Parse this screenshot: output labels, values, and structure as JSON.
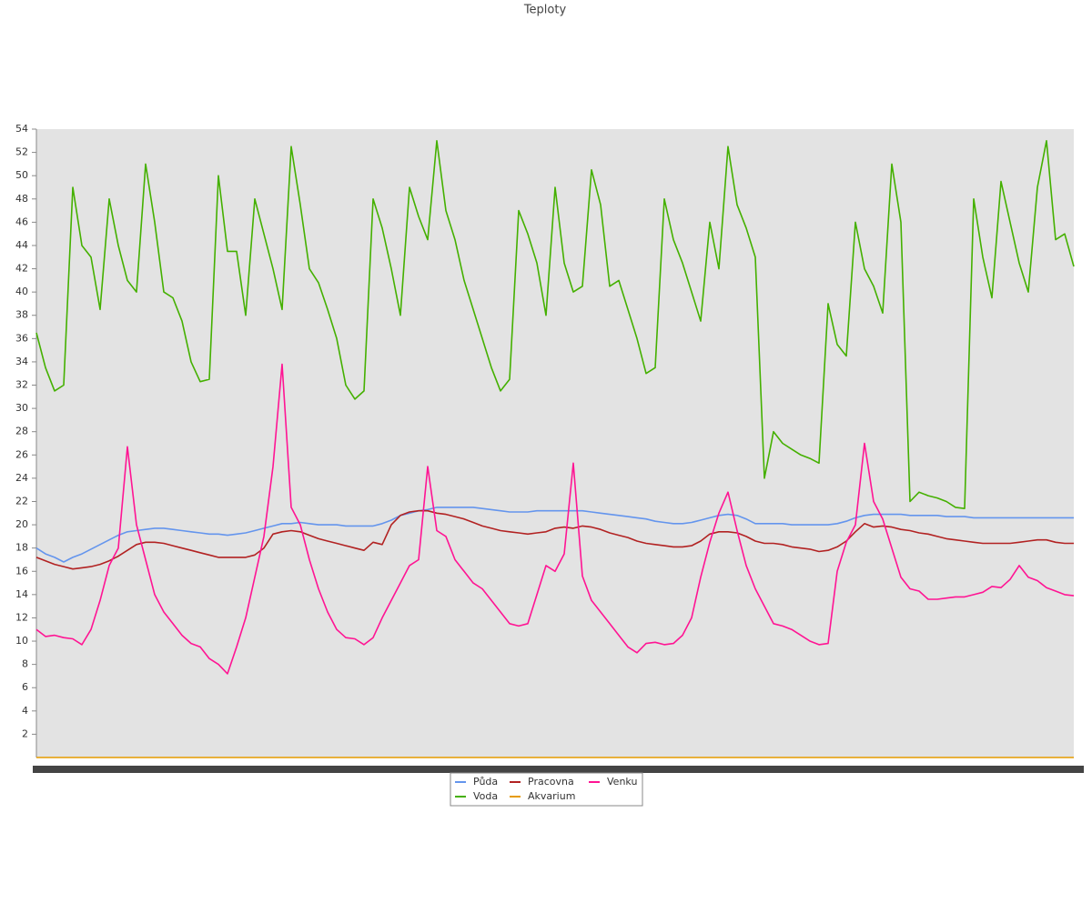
{
  "chart_data": {
    "type": "line",
    "title": "Teploty",
    "categories": [
      null,
      null,
      null,
      null,
      null,
      null,
      null,
      null,
      null,
      null,
      null,
      null,
      null,
      null,
      null,
      null,
      null,
      null,
      null,
      null,
      null,
      null,
      null,
      null,
      null,
      null,
      null,
      null,
      null,
      null,
      null,
      null,
      null,
      null,
      null,
      null,
      null,
      null,
      null,
      null,
      null,
      null,
      null,
      null,
      null,
      null,
      null,
      null,
      null,
      null,
      null,
      null,
      null,
      null,
      null,
      null,
      null,
      null,
      null,
      null,
      null,
      null,
      null,
      null,
      null,
      null,
      null,
      null,
      null,
      null,
      null,
      null,
      null,
      null,
      null,
      null,
      null,
      null,
      null,
      null,
      null,
      null,
      null,
      null,
      null,
      null,
      null,
      null,
      null,
      null,
      null,
      null,
      null,
      null,
      null,
      null,
      null,
      null,
      null,
      null,
      null,
      null,
      null,
      null,
      null,
      null,
      null,
      null,
      null,
      null,
      null,
      null,
      null,
      null,
      null
    ],
    "series": [
      {
        "name": "Půda",
        "color": "#6495ed",
        "values": [
          18,
          17.5,
          17.2,
          16.8,
          17.2,
          17.5,
          17.9,
          18.3,
          18.7,
          19.1,
          19.4,
          19.5,
          19.6,
          19.7,
          19.7,
          19.6,
          19.5,
          19.4,
          19.3,
          19.2,
          19.2,
          19.1,
          19.2,
          19.3,
          19.5,
          19.7,
          19.9,
          20.1,
          20.1,
          20.2,
          20.1,
          20,
          20,
          20,
          19.9,
          19.9,
          19.9,
          19.9,
          20.1,
          20.4,
          20.8,
          21,
          21.2,
          21.3,
          21.5,
          21.5,
          21.5,
          21.5,
          21.5,
          21.4,
          21.3,
          21.2,
          21.1,
          21.1,
          21.1,
          21.2,
          21.2,
          21.2,
          21.2,
          21.2,
          21.2,
          21.1,
          21,
          20.9,
          20.8,
          20.7,
          20.6,
          20.5,
          20.3,
          20.2,
          20.1,
          20.1,
          20.2,
          20.4,
          20.6,
          20.8,
          20.9,
          20.8,
          20.5,
          20.1,
          20.1,
          20.1,
          20.1,
          20,
          20,
          20,
          20,
          20,
          20.1,
          20.3,
          20.6,
          20.8,
          20.9,
          20.9,
          20.9,
          20.9,
          20.8,
          20.8,
          20.8,
          20.8,
          20.7,
          20.7,
          20.7,
          20.6,
          20.6,
          20.6,
          20.6,
          20.6,
          20.6,
          20.6,
          20.6,
          20.6,
          20.6,
          20.6,
          20.6
        ]
      },
      {
        "name": "Voda",
        "color": "#44b000",
        "values": [
          36.5,
          33.5,
          31.5,
          32,
          49,
          44,
          43,
          38.5,
          48,
          44,
          41,
          40,
          51,
          46,
          40,
          39.5,
          37.5,
          34,
          32.3,
          32.5,
          50,
          43.5,
          43.5,
          38,
          48,
          45,
          42,
          38.5,
          52.5,
          47.5,
          42,
          40.8,
          38.5,
          36,
          32,
          30.8,
          31.5,
          48,
          45.5,
          42,
          38,
          49,
          46.5,
          44.5,
          53,
          47,
          44.5,
          41,
          38.5,
          36,
          33.5,
          31.5,
          32.5,
          47,
          45,
          42.5,
          38,
          49,
          42.5,
          40,
          40.5,
          50.5,
          47.5,
          40.5,
          41,
          38.5,
          36,
          33,
          33.5,
          48,
          44.5,
          42.5,
          40,
          37.5,
          46,
          42,
          52.5,
          47.5,
          45.5,
          43,
          24,
          28,
          27,
          26.5,
          26,
          25.7,
          25.3,
          39,
          35.5,
          34.5,
          46,
          42,
          40.5,
          38.2,
          51,
          46,
          22,
          22.8,
          22.5,
          22.3,
          22,
          21.5,
          21.4,
          48,
          43,
          39.5,
          49.5,
          46,
          42.5,
          40,
          49,
          53,
          44.5,
          45,
          42.2
        ]
      },
      {
        "name": "Pracovna",
        "color": "#b22222",
        "values": [
          17.2,
          16.9,
          16.6,
          16.4,
          16.2,
          16.3,
          16.4,
          16.6,
          16.9,
          17.3,
          17.8,
          18.3,
          18.5,
          18.5,
          18.4,
          18.2,
          18,
          17.8,
          17.6,
          17.4,
          17.2,
          17.2,
          17.2,
          17.2,
          17.4,
          18,
          19.2,
          19.4,
          19.5,
          19.4,
          19.1,
          18.8,
          18.6,
          18.4,
          18.2,
          18,
          17.8,
          18.5,
          18.3,
          20,
          20.8,
          21.1,
          21.2,
          21.2,
          21,
          20.9,
          20.7,
          20.5,
          20.2,
          19.9,
          19.7,
          19.5,
          19.4,
          19.3,
          19.2,
          19.3,
          19.4,
          19.7,
          19.8,
          19.7,
          19.9,
          19.8,
          19.6,
          19.3,
          19.1,
          18.9,
          18.6,
          18.4,
          18.3,
          18.2,
          18.1,
          18.1,
          18.2,
          18.6,
          19.2,
          19.4,
          19.4,
          19.3,
          19,
          18.6,
          18.4,
          18.4,
          18.3,
          18.1,
          18,
          17.9,
          17.7,
          17.8,
          18.1,
          18.6,
          19.4,
          20.1,
          19.8,
          19.9,
          19.8,
          19.6,
          19.5,
          19.3,
          19.2,
          19,
          18.8,
          18.7,
          18.6,
          18.5,
          18.4,
          18.4,
          18.4,
          18.4,
          18.5,
          18.6,
          18.7,
          18.7,
          18.5,
          18.4,
          18.4
        ]
      },
      {
        "name": "Akvarium",
        "color": "#e69b00",
        "values": [
          0,
          0,
          0,
          0,
          0,
          0,
          0,
          0,
          0,
          0,
          0,
          0,
          0,
          0,
          0,
          0,
          0,
          0,
          0,
          0,
          0,
          0,
          0,
          0,
          0,
          0,
          0,
          0,
          0,
          0,
          0,
          0,
          0,
          0,
          0,
          0,
          0,
          0,
          0,
          0,
          0,
          0,
          0,
          0,
          0,
          0,
          0,
          0,
          0,
          0,
          0,
          0,
          0,
          0,
          0,
          0,
          0,
          0,
          0,
          0,
          0,
          0,
          0,
          0,
          0,
          0,
          0,
          0,
          0,
          0,
          0,
          0,
          0,
          0,
          0,
          0,
          0,
          0,
          0,
          0,
          0,
          0,
          0,
          0,
          0,
          0,
          0,
          0,
          0,
          0,
          0,
          0,
          0,
          0,
          0,
          0,
          0,
          0,
          0,
          0,
          0,
          0,
          0,
          0,
          0,
          0,
          0,
          0,
          0,
          0,
          0,
          0,
          0,
          0,
          0
        ]
      },
      {
        "name": "Venku",
        "color": "#ff1493",
        "values": [
          11,
          10.4,
          10.5,
          10.3,
          10.2,
          9.7,
          11,
          13.5,
          16.5,
          18,
          26.7,
          20,
          17,
          14,
          12.5,
          11.5,
          10.5,
          9.8,
          9.5,
          8.5,
          8,
          7.2,
          9.5,
          12,
          15.5,
          19,
          25,
          33.8,
          21.5,
          20,
          17,
          14.5,
          12.5,
          11,
          10.3,
          10.2,
          9.7,
          10.3,
          12,
          13.5,
          15,
          16.5,
          17,
          25,
          19.5,
          19,
          17,
          16,
          15,
          14.5,
          13.5,
          12.5,
          11.5,
          11.3,
          11.5,
          14,
          16.5,
          16,
          17.5,
          25.3,
          15.6,
          13.5,
          12.5,
          11.5,
          10.5,
          9.5,
          9,
          9.8,
          9.9,
          9.7,
          9.8,
          10.5,
          12,
          15.5,
          18.5,
          21,
          22.8,
          19.5,
          16.5,
          14.5,
          13,
          11.5,
          11.3,
          11,
          10.5,
          10,
          9.7,
          9.8,
          16,
          18.5,
          20,
          27,
          22,
          20.5,
          18,
          15.5,
          14.5,
          14.3,
          13.6,
          13.6,
          13.7,
          13.8,
          13.8,
          14,
          14.2,
          14.7,
          14.6,
          15.3,
          16.5,
          15.5,
          15.2,
          14.6,
          14.3,
          14,
          13.9
        ]
      }
    ],
    "ylim": [
      0,
      54
    ],
    "yticks": [
      2,
      4,
      6,
      8,
      10,
      12,
      14,
      16,
      18,
      20,
      22,
      24,
      26,
      28,
      30,
      32,
      34,
      36,
      38,
      40,
      42,
      44,
      46,
      48,
      50,
      52,
      54
    ],
    "grid": false,
    "legend": "bottom"
  }
}
